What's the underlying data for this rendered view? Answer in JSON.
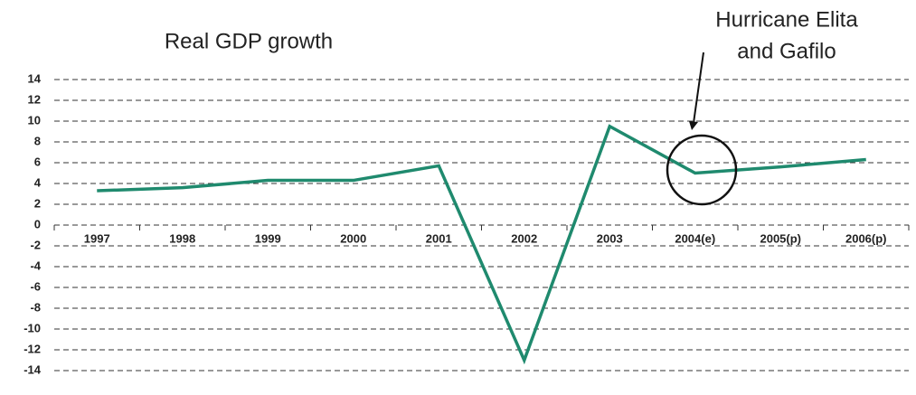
{
  "chart_data": {
    "type": "line",
    "title": "Real GDP growth",
    "annotation": [
      "Hurricane Elita",
      "and Gafilo"
    ],
    "categories": [
      "1997",
      "1998",
      "1999",
      "2000",
      "2001",
      "2002",
      "2003",
      "2004(e)",
      "2005(p)",
      "2006(p)"
    ],
    "series": [
      {
        "name": "Real GDP growth",
        "color": "#1f8a6e",
        "values": [
          3.3,
          3.6,
          4.3,
          4.3,
          5.7,
          -13,
          9.5,
          5.0,
          5.6,
          6.3
        ]
      }
    ],
    "ylim": [
      -14,
      14
    ],
    "yticks": [
      -14,
      -12,
      -10,
      -8,
      -6,
      -4,
      -2,
      0,
      2,
      4,
      6,
      8,
      10,
      12,
      14
    ],
    "grid": true
  }
}
